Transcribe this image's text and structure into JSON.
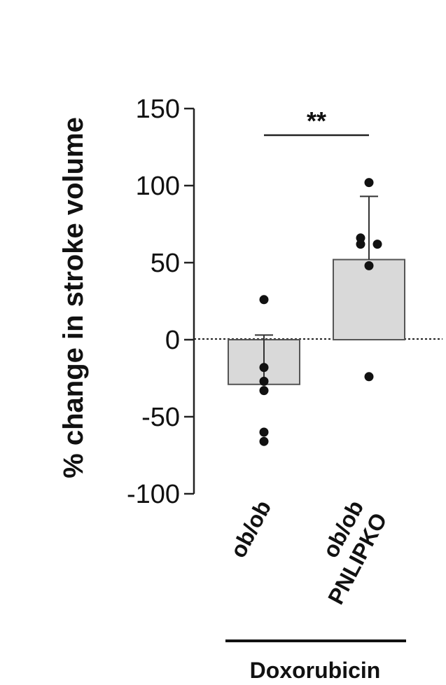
{
  "chart_data": {
    "type": "bar",
    "ylabel": "% change in stroke volume",
    "ylim": [
      -100,
      150
    ],
    "yticks": [
      "150",
      "100",
      "50",
      "0",
      "-50",
      "-100"
    ],
    "ytick_values": [
      150,
      100,
      50,
      0,
      -50,
      -100
    ],
    "categories": [
      "ob/ob",
      "ob/ob PNLIPKO"
    ],
    "category_lines": [
      [
        "ob/ob"
      ],
      [
        "ob/ob",
        "PNLIPKO"
      ]
    ],
    "values": [
      -29,
      52
    ],
    "error": [
      32,
      41
    ],
    "points": [
      [
        26,
        -18,
        -27,
        -33,
        -60,
        -66
      ],
      [
        102,
        66,
        62,
        62,
        48,
        -24
      ]
    ],
    "group_label": "Doxorubicin",
    "significance": "**",
    "colors": {
      "bar_fill": "#d9d9d9",
      "bar_stroke": "#555555",
      "axis": "#222222",
      "point": "#111111"
    },
    "grid": false,
    "legend": "none"
  }
}
